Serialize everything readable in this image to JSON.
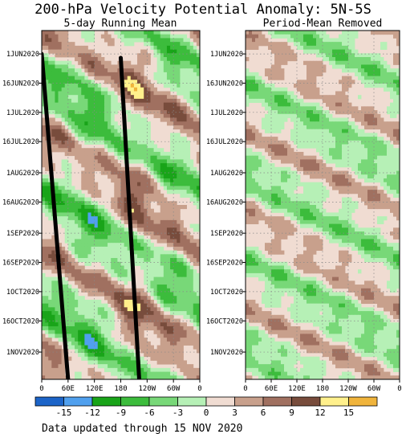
{
  "chart_data": [
    {
      "type": "heatmap",
      "title": "200-hPa Velocity Potential Anomaly: 5N-5S",
      "subtitle": "5-day Running Mean",
      "x_tick_labels": [
        "0",
        "60E",
        "120E",
        "180",
        "120W",
        "60W",
        "0"
      ],
      "y_tick_labels": [
        "1JUN2020",
        "16JUN2020",
        "1JUL2020",
        "16JUL2020",
        "1AUG2020",
        "16AUG2020",
        "1SEP2020",
        "16SEP2020",
        "1OCT2020",
        "16OCT2020",
        "1NOV2020"
      ],
      "xlim": [
        0,
        360
      ],
      "ylim": [
        "2020-05-20",
        "2020-11-15"
      ],
      "grid": true,
      "annotations": [
        {
          "type": "line",
          "x": [
            0,
            60
          ],
          "y": [
            "2020-06-01",
            "2020-11-15"
          ]
        },
        {
          "type": "line",
          "x": [
            180,
            222
          ],
          "y": [
            "2020-06-03",
            "2020-11-15"
          ]
        }
      ]
    },
    {
      "type": "heatmap",
      "subtitle": "Period-Mean Removed",
      "x_tick_labels": [
        "0",
        "60E",
        "120E",
        "180",
        "120W",
        "60W",
        "0"
      ],
      "y_tick_labels": [
        "1JUN2020",
        "16JUN2020",
        "1JUL2020",
        "16JUL2020",
        "1AUG2020",
        "16AUG2020",
        "1SEP2020",
        "16SEP2020",
        "1OCT2020",
        "16OCT2020",
        "1NOV2020"
      ],
      "xlim": [
        0,
        360
      ],
      "ylim": [
        "2020-05-20",
        "2020-11-15"
      ],
      "grid": true
    }
  ],
  "colorbar": {
    "ticks": [
      "-15",
      "-12",
      "-9",
      "-6",
      "-3",
      "0",
      "3",
      "6",
      "9",
      "12",
      "15"
    ],
    "colors": [
      "#1c64c8",
      "#50a0ee",
      "#19a419",
      "#3cbc3c",
      "#78d878",
      "#b6f0b6",
      "#f0dcd2",
      "#c8a08c",
      "#a07060",
      "#784c3c",
      "#fff08c",
      "#f0b43c"
    ]
  },
  "footer": "Data updated through 15 NOV 2020"
}
